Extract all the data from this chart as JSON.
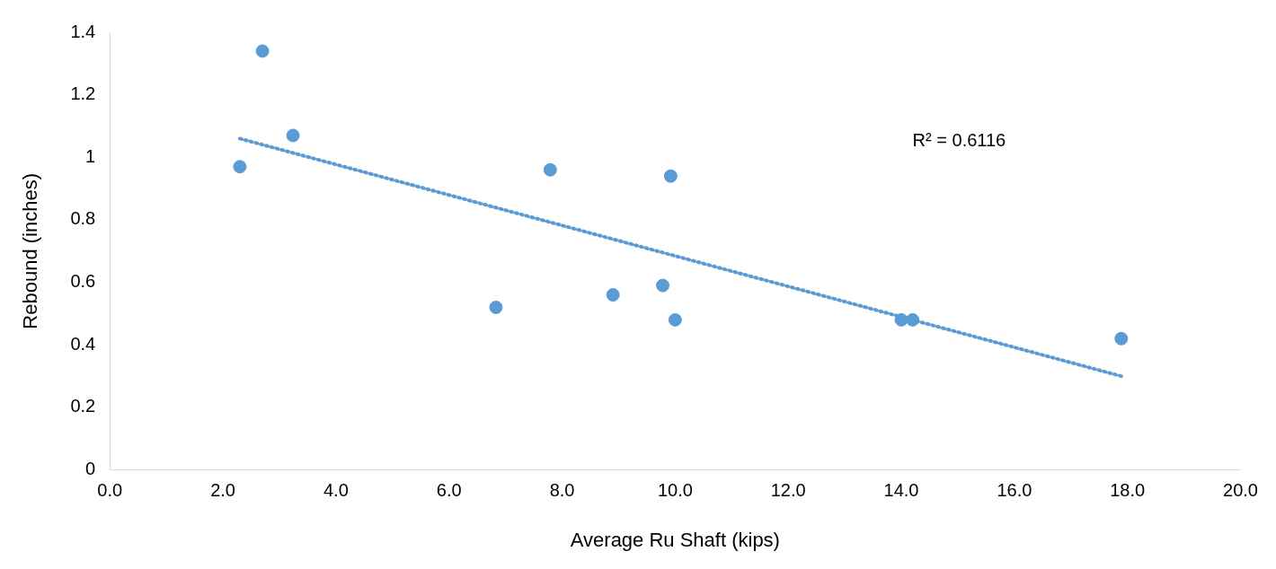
{
  "chart_data": {
    "type": "scatter",
    "xlabel": "Average Ru Shaft (kips)",
    "ylabel": "Rebound (inches)",
    "x": [
      2.3,
      2.7,
      3.24,
      6.83,
      7.79,
      8.9,
      9.78,
      9.92,
      10.0,
      14.0,
      14.2,
      17.89
    ],
    "series": [
      {
        "type": "scatter",
        "color": "#5b9bd5",
        "marker": "circle",
        "values": [
          0.97,
          1.34,
          1.07,
          0.52,
          0.96,
          0.56,
          0.59,
          0.94,
          0.48,
          0.48,
          0.48,
          0.42
        ]
      },
      {
        "type": "line",
        "color": "#5b9bd5",
        "marker": "none",
        "line_style": "dotted",
        "x": [
          2.3,
          17.89
        ],
        "values": [
          1.06,
          0.3
        ]
      }
    ],
    "xlim": [
      0,
      20
    ],
    "xticks": [
      {
        "value": 0,
        "label": "0.0"
      },
      {
        "value": 2,
        "label": "2.0"
      },
      {
        "value": 4,
        "label": "4.0"
      },
      {
        "value": 6,
        "label": "6.0"
      },
      {
        "value": 8,
        "label": "8.0"
      },
      {
        "value": 10,
        "label": "10.0"
      },
      {
        "value": 12,
        "label": "12.0"
      },
      {
        "value": 14,
        "label": "14.0"
      },
      {
        "value": 16,
        "label": "16.0"
      },
      {
        "value": 18,
        "label": "18.0"
      },
      {
        "value": 20,
        "label": "20.0"
      }
    ],
    "ylim": [
      0,
      1.4
    ],
    "yticks": [
      0,
      0.2,
      0.4,
      0.6,
      0.8,
      1,
      1.2,
      1.4
    ],
    "annotations": [
      "R² = 0.6116"
    ],
    "grid": false,
    "legend": false
  }
}
